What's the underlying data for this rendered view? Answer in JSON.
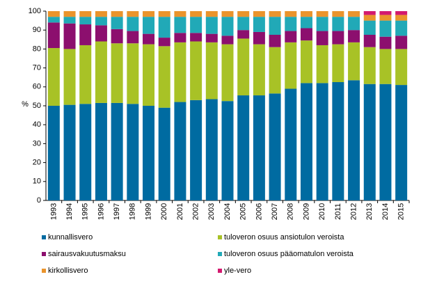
{
  "chart_data": {
    "type": "stacked-bar",
    "y_label": "%",
    "categories": [
      "1993",
      "1994",
      "1995",
      "1996",
      "1997",
      "1998",
      "1999",
      "2000",
      "2001",
      "2002",
      "2003",
      "2004",
      "2005",
      "2006",
      "2007",
      "2008",
      "2009",
      "2010",
      "2011",
      "2012",
      "2013",
      "2014",
      "2015"
    ],
    "series": [
      {
        "name": "kunnallisvero",
        "color": "#006ba1",
        "values": [
          50,
          50.5,
          51,
          51.5,
          51.5,
          51,
          50,
          49,
          52,
          53,
          53.5,
          52.5,
          55.5,
          55.5,
          56.5,
          59,
          62,
          62,
          62.5,
          63.5,
          61.5,
          61.5,
          61
        ]
      },
      {
        "name": "tuloveron osuus ansiotulon veroista",
        "color": "#a8c226",
        "values": [
          30.5,
          29.5,
          31,
          32.5,
          31.5,
          32,
          32.5,
          32.5,
          31.5,
          31,
          30,
          30,
          30,
          27,
          24.5,
          24.5,
          22.5,
          20,
          20,
          20,
          19.5,
          18.5,
          19
        ]
      },
      {
        "name": "sairausvakuutusmaksu",
        "color": "#8c0f6e",
        "values": [
          13.5,
          13.5,
          11,
          8.5,
          7.5,
          6.5,
          5.5,
          4.5,
          5,
          4.5,
          4.5,
          4.5,
          4.5,
          6.5,
          6.5,
          6,
          6.5,
          7.5,
          7,
          6.5,
          6.5,
          6.5,
          7
        ]
      },
      {
        "name": "tuloveron osuus pääomatulon veroista",
        "color": "#21a9b7",
        "values": [
          3,
          3.5,
          4,
          4.5,
          6.5,
          7.5,
          9,
          11,
          8.5,
          8.5,
          9,
          10,
          7,
          8,
          9.5,
          7.5,
          6,
          7.5,
          7.5,
          7,
          7.5,
          8.5,
          8
        ]
      },
      {
        "name": "kirkollisvero",
        "color": "#ea942c",
        "values": [
          3,
          3,
          3,
          3,
          3,
          3,
          3,
          3,
          3,
          3,
          3,
          3,
          3,
          3,
          3,
          3,
          3,
          3,
          3,
          3,
          3,
          3,
          3
        ]
      },
      {
        "name": "yle-vero",
        "color": "#d3196f",
        "values": [
          null,
          null,
          null,
          null,
          null,
          null,
          null,
          null,
          null,
          null,
          null,
          null,
          null,
          null,
          null,
          null,
          null,
          null,
          null,
          null,
          2,
          2,
          2
        ]
      }
    ],
    "ylim": [
      0,
      100
    ],
    "yticks": [
      0,
      10,
      20,
      30,
      40,
      50,
      60,
      70,
      80,
      90,
      100
    ],
    "grid": false
  }
}
